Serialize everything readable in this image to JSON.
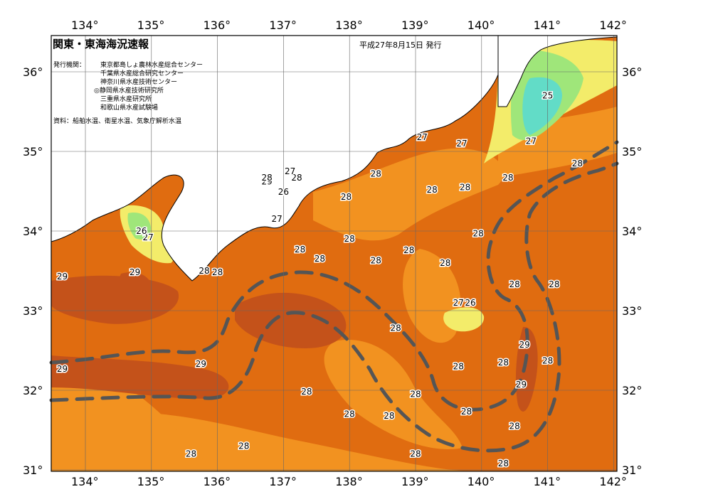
{
  "title": "関東・東海海況速報",
  "issued": "平成27年8月15日 発行",
  "issuers_label": "発行機関：",
  "issuers": [
    "東京都島しょ農林水産総合センター",
    "千葉県水産総合研究センター",
    "神奈川県水産技術センター",
    "◎静岡県水産技術研究所",
    "三重県水産研究所",
    "和歌山県水産試験場"
  ],
  "sources": "資料：船舶水温、衛星水温、気象庁解析水温",
  "lon_labels": [
    "134°",
    "135°",
    "136°",
    "137°",
    "138°",
    "139°",
    "140°",
    "141°",
    "142°"
  ],
  "lat_labels": [
    "36°",
    "35°",
    "34°",
    "33°",
    "32°",
    "31°"
  ],
  "colors": {
    "c29": "#c4521a",
    "c28": "#e06c10",
    "c27": "#f29220",
    "c26": "#f7b84a",
    "c25": "#f3ec6a",
    "c24": "#9fe67a",
    "c23": "#62dcc7",
    "land": "#ffffff",
    "kuroshio": "#555555"
  },
  "temperature_labels": [
    {
      "t": "29",
      "lon": 133.65,
      "lat": 33.43
    },
    {
      "t": "29",
      "lon": 134.75,
      "lat": 33.48
    },
    {
      "t": "29",
      "lon": 133.65,
      "lat": 32.27
    },
    {
      "t": "29",
      "lon": 135.75,
      "lat": 32.33
    },
    {
      "t": "28",
      "lon": 135.8,
      "lat": 33.5
    },
    {
      "t": "28",
      "lon": 136.0,
      "lat": 33.48
    },
    {
      "t": "27",
      "lon": 134.95,
      "lat": 33.92
    },
    {
      "t": "26",
      "lon": 134.85,
      "lat": 34.0
    },
    {
      "t": "29",
      "lon": 136.75,
      "lat": 34.62
    },
    {
      "t": "28",
      "lon": 136.75,
      "lat": 34.67
    },
    {
      "t": "28",
      "lon": 137.2,
      "lat": 34.67
    },
    {
      "t": "27",
      "lon": 137.1,
      "lat": 34.75
    },
    {
      "t": "26",
      "lon": 137.0,
      "lat": 34.49
    },
    {
      "t": "27",
      "lon": 136.9,
      "lat": 34.15
    },
    {
      "t": "28",
      "lon": 137.95,
      "lat": 34.43
    },
    {
      "t": "28",
      "lon": 138.4,
      "lat": 34.72
    },
    {
      "t": "28",
      "lon": 139.25,
      "lat": 34.52
    },
    {
      "t": "28",
      "lon": 139.75,
      "lat": 34.55
    },
    {
      "t": "27",
      "lon": 139.1,
      "lat": 35.18
    },
    {
      "t": "27",
      "lon": 139.7,
      "lat": 35.1
    },
    {
      "t": "28",
      "lon": 138.0,
      "lat": 33.9
    },
    {
      "t": "28",
      "lon": 137.25,
      "lat": 33.77
    },
    {
      "t": "28",
      "lon": 137.55,
      "lat": 33.65
    },
    {
      "t": "28",
      "lon": 138.4,
      "lat": 33.63
    },
    {
      "t": "28",
      "lon": 138.9,
      "lat": 33.76
    },
    {
      "t": "28",
      "lon": 139.45,
      "lat": 33.6
    },
    {
      "t": "28",
      "lon": 139.95,
      "lat": 33.97
    },
    {
      "t": "28",
      "lon": 140.4,
      "lat": 34.67
    },
    {
      "t": "27",
      "lon": 140.75,
      "lat": 35.13
    },
    {
      "t": "25",
      "lon": 141.0,
      "lat": 35.7
    },
    {
      "t": "28",
      "lon": 141.45,
      "lat": 34.85
    },
    {
      "t": "28",
      "lon": 140.5,
      "lat": 33.33
    },
    {
      "t": "28",
      "lon": 141.1,
      "lat": 33.33
    },
    {
      "t": "27",
      "lon": 139.65,
      "lat": 33.1
    },
    {
      "t": "26",
      "lon": 139.83,
      "lat": 33.1
    },
    {
      "t": "28",
      "lon": 138.7,
      "lat": 32.78
    },
    {
      "t": "29",
      "lon": 140.65,
      "lat": 32.57
    },
    {
      "t": "28",
      "lon": 140.33,
      "lat": 32.35
    },
    {
      "t": "28",
      "lon": 141.0,
      "lat": 32.37
    },
    {
      "t": "28",
      "lon": 139.65,
      "lat": 32.3
    },
    {
      "t": "29",
      "lon": 140.6,
      "lat": 32.07
    },
    {
      "t": "28",
      "lon": 139.0,
      "lat": 31.95
    },
    {
      "t": "28",
      "lon": 139.77,
      "lat": 31.73
    },
    {
      "t": "28",
      "lon": 140.5,
      "lat": 31.55
    },
    {
      "t": "28",
      "lon": 137.35,
      "lat": 31.98
    },
    {
      "t": "28",
      "lon": 138.0,
      "lat": 31.7
    },
    {
      "t": "28",
      "lon": 138.6,
      "lat": 31.68
    },
    {
      "t": "28",
      "lon": 136.4,
      "lat": 31.3
    },
    {
      "t": "28",
      "lon": 135.6,
      "lat": 31.2
    },
    {
      "t": "28",
      "lon": 139.0,
      "lat": 31.2
    },
    {
      "t": "28",
      "lon": 140.33,
      "lat": 31.08
    }
  ]
}
